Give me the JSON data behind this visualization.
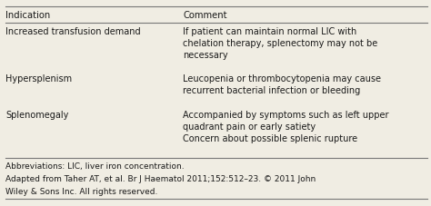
{
  "background_color": "#f0ede3",
  "header": [
    "Indication",
    "Comment"
  ],
  "rows": [
    {
      "indication": "Increased transfusion demand",
      "comment": "If patient can maintain normal LIC with\nchelation therapy, splenectomy may not be\nnecessary"
    },
    {
      "indication": "Hypersplenism",
      "comment": "Leucopenia or thrombocytopenia may cause\nrecurrent bacterial infection or bleeding"
    },
    {
      "indication": "Splenomegaly",
      "comment": "Accompanied by symptoms such as left upper\nquadrant pain or early satiety\nConcern about possible splenic rupture"
    }
  ],
  "footnote_lines": [
    "Abbreviations: LIC, liver iron concentration.",
    "Adapted from Taher AT, et al. Br J Haematol 2011;152:512–23. © 2011 John",
    "Wiley & Sons Inc. All rights reserved."
  ],
  "col_split": 0.425,
  "font_size": 7.0,
  "header_font_size": 7.2,
  "footnote_font_size": 6.5,
  "text_color": "#1a1a1a",
  "line_color": "#777777"
}
